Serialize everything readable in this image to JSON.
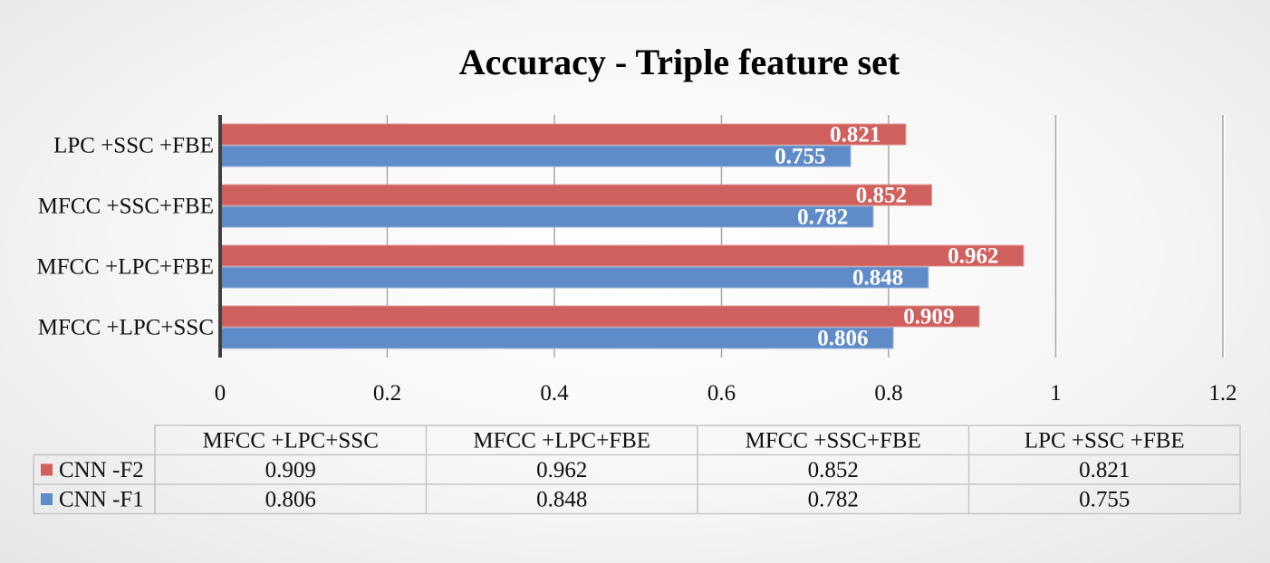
{
  "chart_data": {
    "type": "bar",
    "orientation": "horizontal",
    "title": "Accuracy - Triple feature set",
    "categories": [
      "MFCC +LPC+SSC",
      "MFCC +LPC+FBE",
      "MFCC +SSC+FBE",
      "LPC +SSC +FBE"
    ],
    "series": [
      {
        "name": "CNN -F2",
        "color": "#d0605e",
        "values": [
          0.909,
          0.962,
          0.852,
          0.821
        ]
      },
      {
        "name": "CNN -F1",
        "color": "#5f8cc8",
        "values": [
          0.806,
          0.848,
          0.782,
          0.755
        ]
      }
    ],
    "xlim": [
      0,
      1.2
    ],
    "xticks": [
      "0",
      "0.2",
      "0.4",
      "0.6",
      "0.8",
      "1",
      "1.2"
    ],
    "grid": true,
    "data_labels": true,
    "legend": "data-table-below"
  }
}
